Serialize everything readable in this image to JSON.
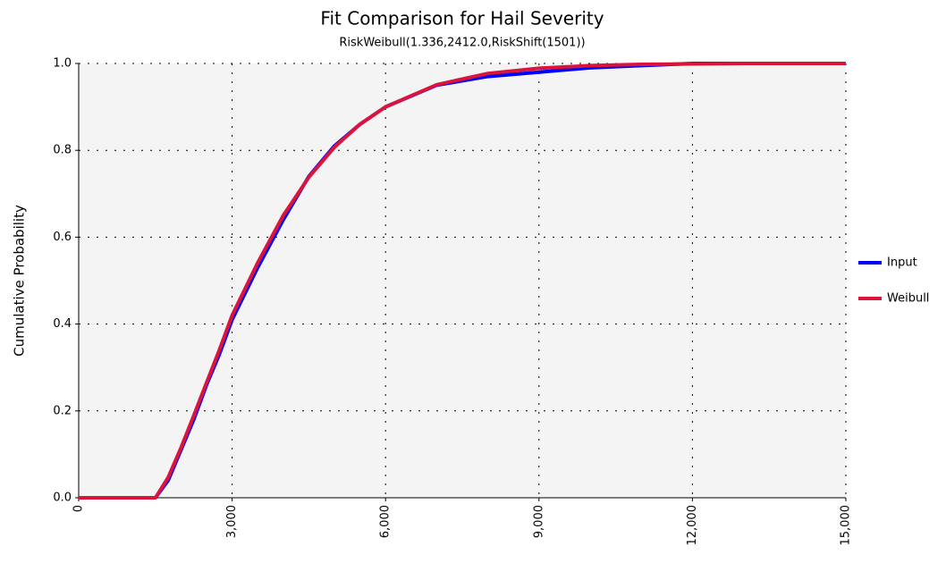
{
  "chart_data": {
    "type": "line",
    "title": "Fit Comparison for Hail Severity",
    "subtitle": "RiskWeibull(1.336,2412.0,RiskShift(1501))",
    "y_label": "Cumulative Probability",
    "x": [
      0,
      1501,
      1750,
      2000,
      2250,
      2500,
      2750,
      3000,
      3500,
      4000,
      4500,
      5000,
      5500,
      6000,
      7000,
      8000,
      9000,
      10000,
      11000,
      12000,
      13000,
      15000
    ],
    "series": [
      {
        "name": "Input",
        "color": "#0000ff",
        "values": [
          0,
          0,
          0.04,
          0.11,
          0.18,
          0.26,
          0.33,
          0.41,
          0.53,
          0.64,
          0.74,
          0.81,
          0.86,
          0.9,
          0.95,
          0.97,
          0.98,
          0.99,
          0.995,
          1.0,
          1.0,
          1.0
        ]
      },
      {
        "name": "Weibull",
        "color": "#dc143c",
        "values": [
          0,
          0,
          0.047,
          0.115,
          0.189,
          0.265,
          0.34,
          0.42,
          0.541,
          0.65,
          0.738,
          0.807,
          0.86,
          0.9,
          0.951,
          0.977,
          0.989,
          0.995,
          0.998,
          0.999,
          1.0,
          1.0
        ]
      }
    ],
    "xlim": [
      0,
      15000
    ],
    "xticks": [
      0,
      {
        "value": 3000,
        "label": "3,000"
      },
      {
        "value": 6000,
        "label": "6,000"
      },
      {
        "value": 9000,
        "label": "9,000"
      },
      {
        "value": 12000,
        "label": "12,000"
      },
      {
        "value": 15000,
        "label": "15,000"
      }
    ],
    "ylim": [
      0,
      1
    ],
    "yticks": [
      {
        "value": 0,
        "label": "0.0"
      },
      0.2,
      0.4,
      0.6,
      0.8,
      {
        "value": 1,
        "label": "1.0"
      }
    ],
    "grid": true,
    "legend": "right"
  }
}
